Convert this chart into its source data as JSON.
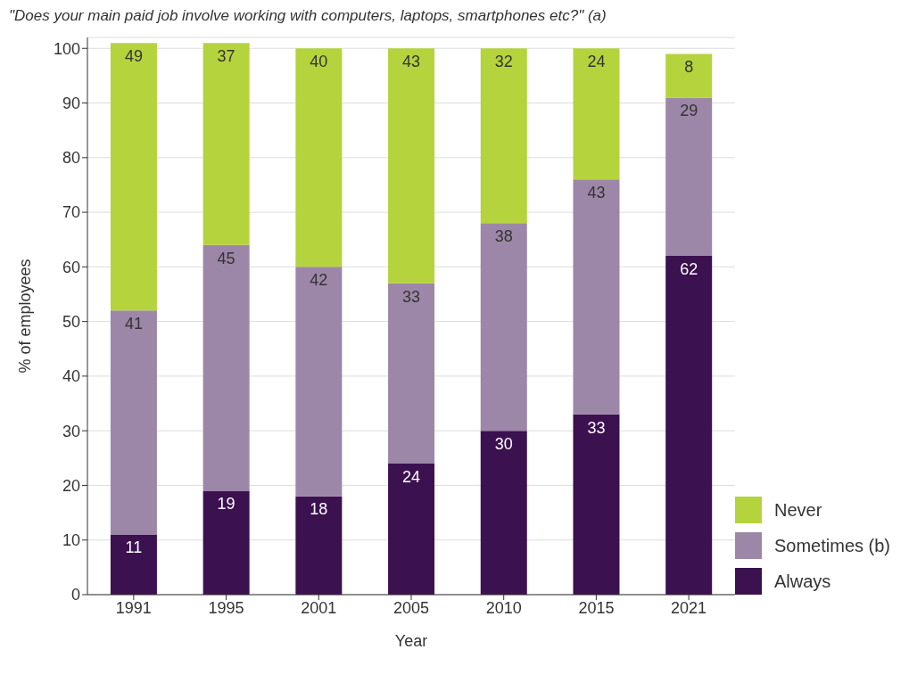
{
  "chart_data": {
    "type": "bar",
    "title": "\"Does your main paid job involve working with computers, laptops, smartphones etc?\" (a)",
    "xlabel": "Year",
    "ylabel": "% of employees",
    "categories": [
      "1991",
      "1995",
      "2001",
      "2005",
      "2010",
      "2015",
      "2021"
    ],
    "stacked": true,
    "series": [
      {
        "name": "Always",
        "color": "#3b1150",
        "values": [
          11,
          19,
          18,
          24,
          30,
          33,
          62
        ]
      },
      {
        "name": "Sometimes (b)",
        "color": "#9d87a8",
        "values": [
          41,
          45,
          42,
          33,
          38,
          43,
          29
        ]
      },
      {
        "name": "Never",
        "color": "#b5d33d",
        "values": [
          49,
          37,
          40,
          43,
          32,
          24,
          8
        ]
      }
    ],
    "ylim": [
      0,
      102
    ],
    "yticks": [
      0,
      10,
      20,
      30,
      40,
      50,
      60,
      70,
      80,
      90,
      100
    ],
    "grid": "y",
    "legend": "right",
    "data_labels": true
  }
}
